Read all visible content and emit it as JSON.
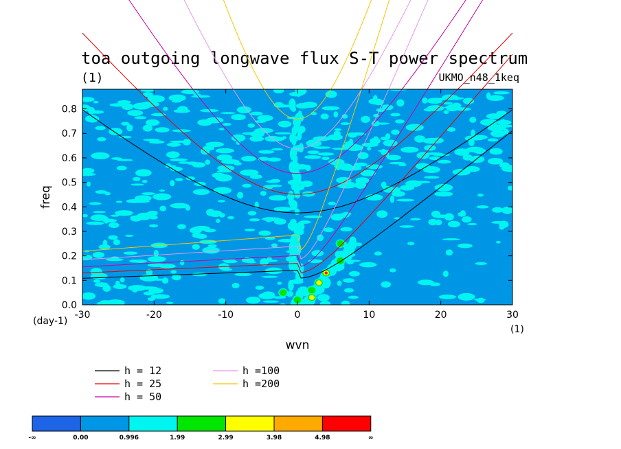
{
  "title": "toa outgoing longwave flux S-T power spectrum",
  "subtitle_left": "(1)",
  "subtitle_right": "UKMO_n48_1keq",
  "chart_data": {
    "type": "heatmap",
    "xlabel": "wvn",
    "ylabel": "freq",
    "x_unit_label": "(1)",
    "y_unit_label": "(day-1)",
    "xlim": [
      -30,
      30
    ],
    "ylim": [
      0,
      0.88
    ],
    "x_ticks": [
      -30,
      -20,
      -10,
      0,
      10,
      20,
      30
    ],
    "y_ticks": [
      0.0,
      0.1,
      0.2,
      0.3,
      0.4,
      0.5,
      0.6,
      0.7,
      0.8
    ],
    "y_tick_labels": [
      "0.0",
      "0.1",
      "0.2",
      "0.3",
      "0.4",
      "0.5",
      "0.6",
      "0.7",
      "0.8"
    ],
    "colorbar": {
      "colors": [
        "#1e64e6",
        "#0096e6",
        "#00f5f0",
        "#00e600",
        "#ffff00",
        "#ffaa00",
        "#ff0000"
      ],
      "labels": [
        "-∞",
        "0.00",
        "0.996",
        "1.99",
        "2.99",
        "3.98",
        "4.98",
        "∞"
      ]
    },
    "dispersion_curves": [
      {
        "name": "h = 12",
        "h": 12,
        "color": "#000000"
      },
      {
        "name": "h = 25",
        "h": 25,
        "color": "#e60000"
      },
      {
        "name": "h = 50",
        "h": 50,
        "color": "#c800a0"
      },
      {
        "name": "h =100",
        "h": 100,
        "color": "#e696e6"
      },
      {
        "name": "h =200",
        "h": 200,
        "color": "#f0c800"
      }
    ],
    "hotspots": [
      {
        "x": 4,
        "y": 0.13,
        "level": 6
      },
      {
        "x": 3,
        "y": 0.09,
        "level": 4
      },
      {
        "x": 2,
        "y": 0.03,
        "level": 4
      },
      {
        "x": 6,
        "y": 0.18,
        "level": 3
      },
      {
        "x": 6,
        "y": 0.25,
        "level": 3
      },
      {
        "x": 2,
        "y": 0.06,
        "level": 3
      },
      {
        "x": -2,
        "y": 0.05,
        "level": 3
      },
      {
        "x": 0,
        "y": 0.02,
        "level": 3
      },
      {
        "x": 7,
        "y": 0.21,
        "level": 2
      }
    ]
  }
}
